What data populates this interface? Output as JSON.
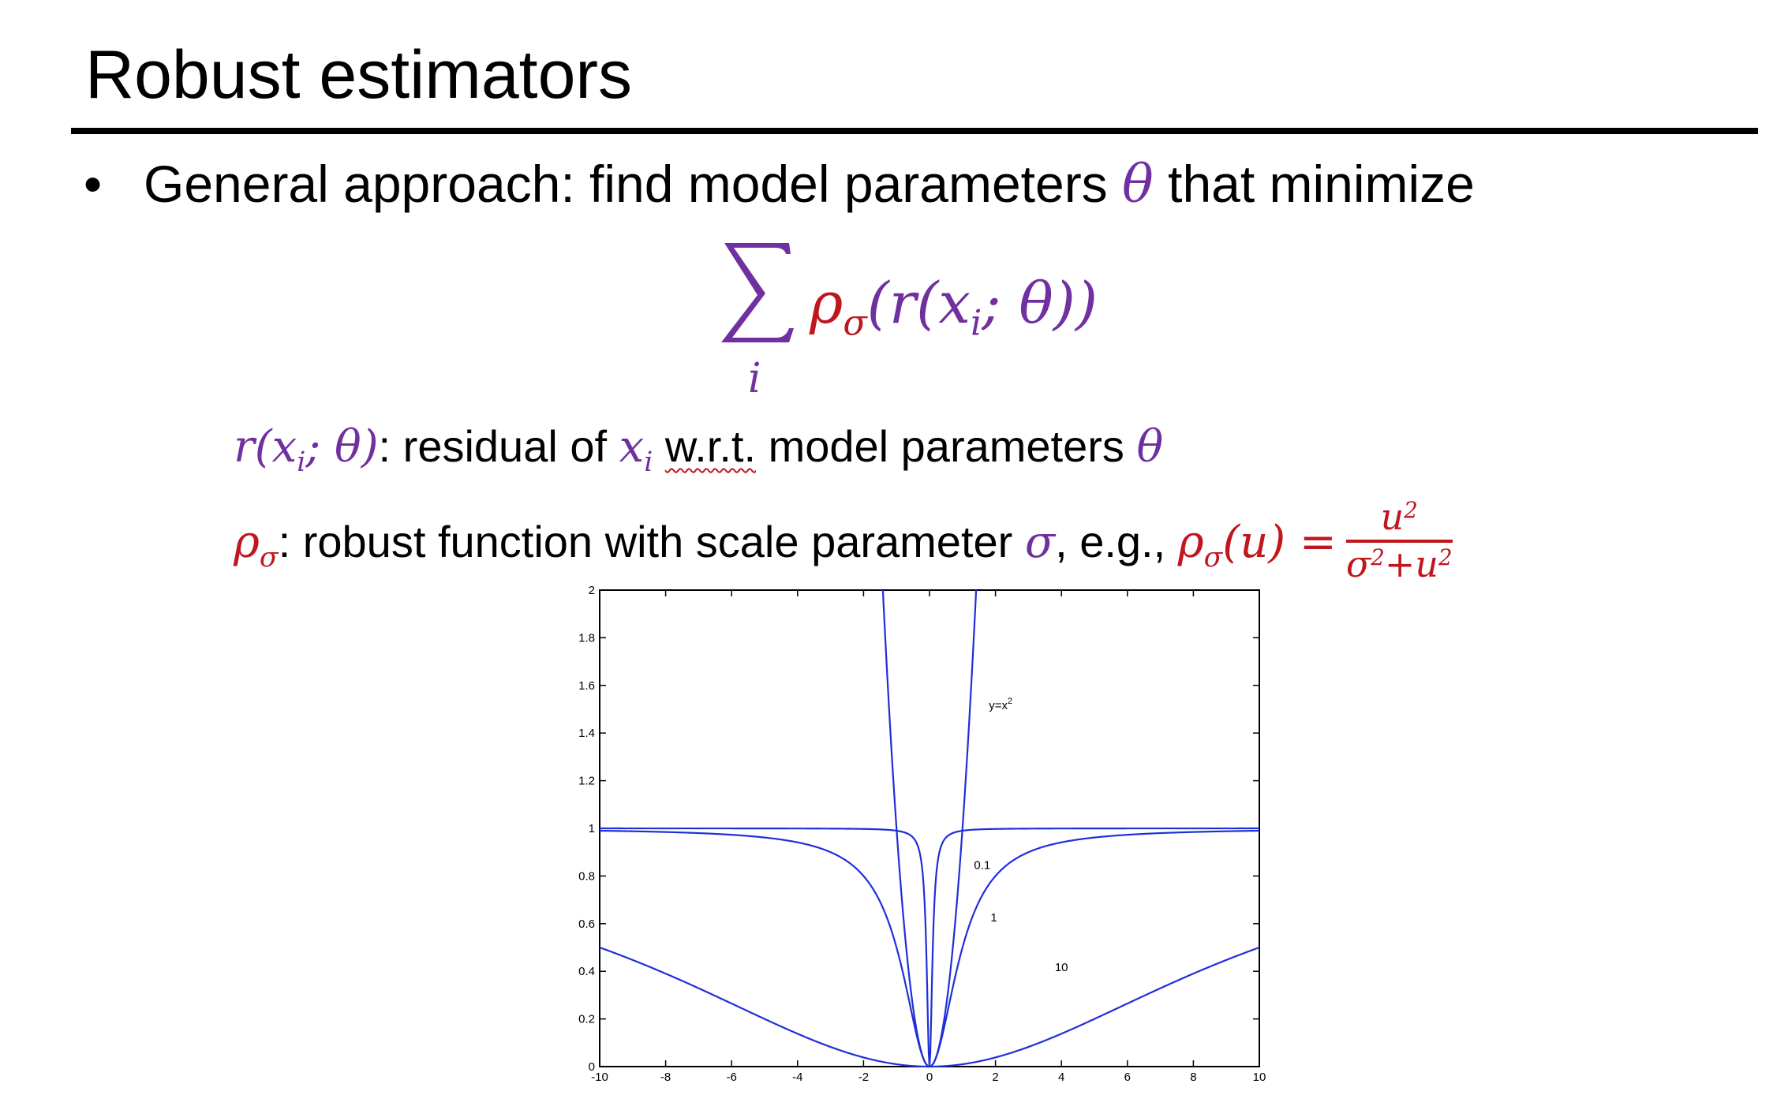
{
  "slide": {
    "title": "Robust estimators",
    "bullet": {
      "marker": "•",
      "text_before": "General approach: find model parameters ",
      "theta": "θ",
      "text_after": " that minimize"
    },
    "formula": {
      "sum_symbol": "∑",
      "sum_index": "i",
      "rho": "ρ",
      "rho_sub": "σ",
      "open": "(r(x",
      "x_sub": "i",
      "close": "; θ))"
    },
    "def_residual": {
      "r_open": "r(x",
      "r_sub": "i",
      "r_close": "; θ)",
      "text1": ": residual of ",
      "x": "x",
      "x_sub": "i",
      "wrt": "w.r.t.",
      "text2": " model parameters ",
      "theta": "θ"
    },
    "def_robust": {
      "rho": "ρ",
      "rho_sub": "σ",
      "text1": ": robust function with scale parameter ",
      "sigma": "σ",
      "text2": ", e.g., ",
      "eq_rho": "ρ",
      "eq_rho_sub": "σ",
      "eq_arg": "(u) =",
      "num": "u",
      "num_sup": "2",
      "den_sigma": "σ",
      "den_sigma_sup": "2",
      "den_plus": "+u",
      "den_u_sup": "2"
    }
  },
  "chart_data": {
    "type": "line",
    "x_range": [
      -10,
      10
    ],
    "ylim": [
      0,
      2
    ],
    "x_ticks": [
      "-10",
      "-8",
      "-6",
      "-4",
      "-2",
      "0",
      "2",
      "4",
      "6",
      "8",
      "10"
    ],
    "y_ticks": [
      "0",
      "0.2",
      "0.4",
      "0.6",
      "0.8",
      "1",
      "1.2",
      "1.4",
      "1.6",
      "1.8",
      "2"
    ],
    "function": "u^2/(sigma^2+u^2)",
    "series": [
      {
        "name": "y=x²",
        "label_sup": "2",
        "label_base": "y=x",
        "kind": "parabola"
      },
      {
        "name": "0.1",
        "sigma": 0.1
      },
      {
        "name": "1",
        "sigma": 1
      },
      {
        "name": "10",
        "sigma": 10
      }
    ],
    "line_color": "#1f2fd8",
    "grid": false
  }
}
